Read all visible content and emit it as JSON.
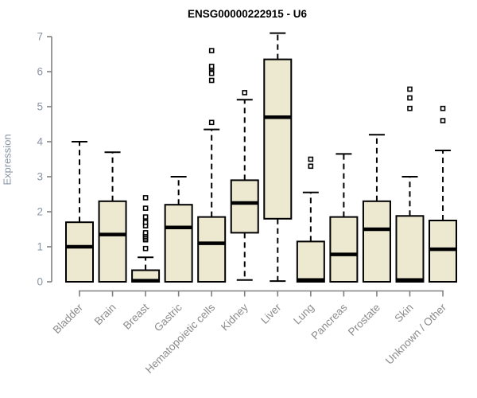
{
  "chart_data": {
    "type": "boxplot",
    "title": "ENSG00000222915 - U6",
    "ylabel": "Expression",
    "xlabel": "",
    "ylim": [
      0,
      7
    ],
    "yticks": [
      0,
      1,
      2,
      3,
      4,
      5,
      6,
      7
    ],
    "grid": false,
    "categories": [
      "Bladder",
      "Brain",
      "Breast",
      "Gastric",
      "Hematopoietic cells",
      "Kidney",
      "Liver",
      "Lung",
      "Pancreas",
      "Prostate",
      "Skin",
      "Unknown / Other"
    ],
    "boxes": [
      {
        "category": "Bladder",
        "whisker_low": 0,
        "q1": 0,
        "median": 1.0,
        "q3": 1.7,
        "whisker_high": 4.0,
        "outliers": []
      },
      {
        "category": "Brain",
        "whisker_low": 0,
        "q1": 0,
        "median": 1.35,
        "q3": 2.3,
        "whisker_high": 3.7,
        "outliers": []
      },
      {
        "category": "Breast",
        "whisker_low": 0,
        "q1": 0,
        "median": 0.03,
        "q3": 0.33,
        "whisker_high": 0.7,
        "outliers": [
          0.95,
          1.2,
          1.25,
          1.3,
          1.35,
          1.4,
          1.6,
          1.7,
          1.85,
          2.1,
          2.4
        ]
      },
      {
        "category": "Gastric",
        "whisker_low": 0,
        "q1": 0,
        "median": 1.55,
        "q3": 2.2,
        "whisker_high": 3.0,
        "outliers": []
      },
      {
        "category": "Hematopoietic cells",
        "whisker_low": 0,
        "q1": 0,
        "median": 1.1,
        "q3": 1.85,
        "whisker_high": 4.35,
        "outliers": [
          4.55,
          5.75,
          5.95,
          6.1,
          6.15,
          6.6
        ]
      },
      {
        "category": "Kidney",
        "whisker_low": 0.05,
        "q1": 1.4,
        "median": 2.25,
        "q3": 2.9,
        "whisker_high": 5.2,
        "outliers": [
          5.4
        ]
      },
      {
        "category": "Liver",
        "whisker_low": 0.02,
        "q1": 1.8,
        "median": 4.7,
        "q3": 6.35,
        "whisker_high": 7.1,
        "outliers": []
      },
      {
        "category": "Lung",
        "whisker_low": 0,
        "q1": 0,
        "median": 0.05,
        "q3": 1.15,
        "whisker_high": 2.55,
        "outliers": [
          3.3,
          3.5
        ]
      },
      {
        "category": "Pancreas",
        "whisker_low": 0,
        "q1": 0,
        "median": 0.78,
        "q3": 1.85,
        "whisker_high": 3.65,
        "outliers": []
      },
      {
        "category": "Prostate",
        "whisker_low": 0,
        "q1": 0,
        "median": 1.5,
        "q3": 2.3,
        "whisker_high": 4.2,
        "outliers": []
      },
      {
        "category": "Skin",
        "whisker_low": 0,
        "q1": 0,
        "median": 0.05,
        "q3": 1.88,
        "whisker_high": 3.0,
        "outliers": [
          4.95,
          5.25,
          5.5
        ]
      },
      {
        "category": "Unknown / Other",
        "whisker_low": 0,
        "q1": 0,
        "median": 0.93,
        "q3": 1.75,
        "whisker_high": 3.75,
        "outliers": [
          4.6,
          4.95
        ]
      }
    ],
    "colors": {
      "box_fill": "#EDE8D0",
      "box_stroke": "#000000",
      "median": "#000000",
      "whisker": "#000000",
      "outlier_stroke": "#000000",
      "outlier_fill": "#FFFFFF",
      "axis_line": "#808080",
      "y_tick_label": "#8A94A4",
      "x_tick_label": "#8B8B8B",
      "title": "#000000",
      "background": "#FFFFFF"
    }
  }
}
